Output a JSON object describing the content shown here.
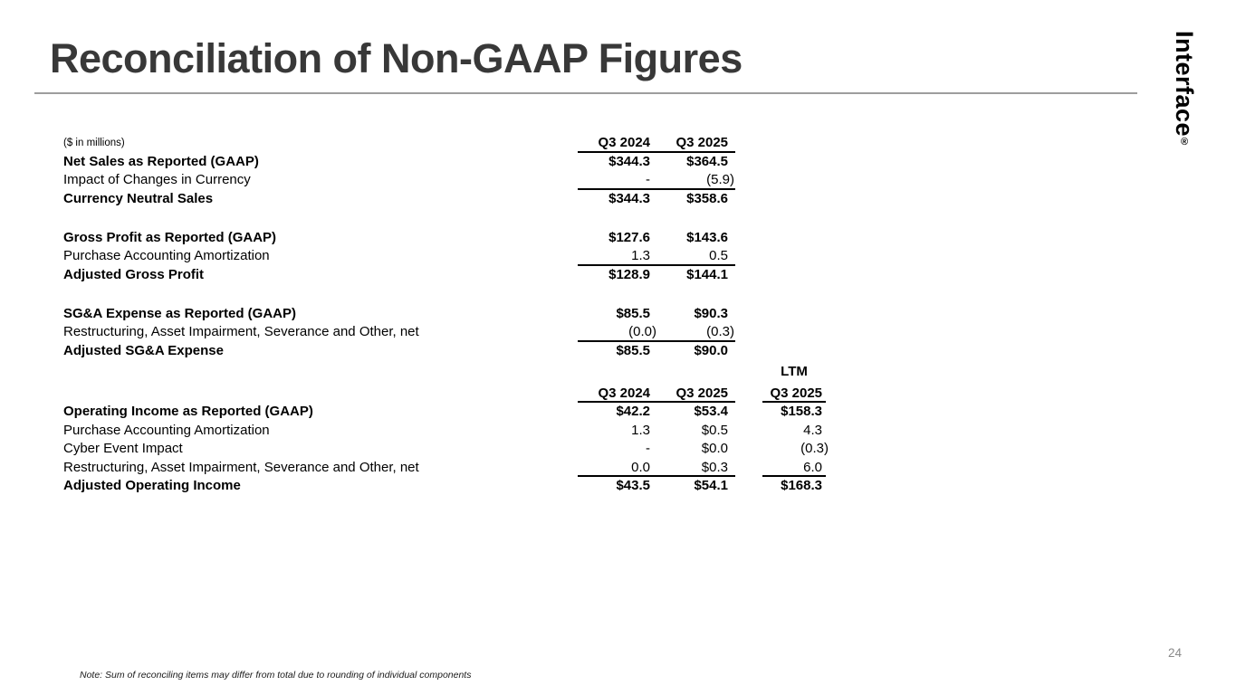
{
  "slide": {
    "title": "Reconciliation of Non-GAAP Figures",
    "logo_text": "Interface",
    "logo_registered": "®",
    "footnote": "Note: Sum of reconciling items may differ from total due to rounding of individual components",
    "page_number": "24"
  },
  "colors": {
    "title_text": "#383838",
    "rule": "#9d9d9d",
    "table_text": "#000000",
    "page_number": "#8a8a8a",
    "background": "#ffffff"
  },
  "table": {
    "units_label": "($ in millions)",
    "column_headers_top": [
      "Q3 2024",
      "Q3 2025"
    ],
    "column_headers_bottom": [
      "Q3 2024",
      "Q3 2025",
      "LTM Q3 2025"
    ],
    "rows": [
      {
        "label": "($ in millions)",
        "small": true,
        "vb": true,
        "c1": "Q3 2024",
        "c2": "Q3 2025",
        "line12": true
      },
      {
        "label": "Net Sales as Reported (GAAP)",
        "lb": true,
        "vb": true,
        "c1": "$344.3",
        "c2": "$364.5"
      },
      {
        "label": "Impact of Changes in Currency",
        "c1": "-",
        "c2": "(5.9)",
        "line12": true
      },
      {
        "label": "Currency Neutral Sales",
        "lb": true,
        "vb": true,
        "c1": "$344.3",
        "c2": "$358.6"
      },
      {
        "sp": true
      },
      {
        "label": "Gross Profit as Reported (GAAP)",
        "lb": true,
        "vb": true,
        "c1": "$127.6",
        "c2": "$143.6"
      },
      {
        "label": "Purchase Accounting Amortization",
        "c1": "1.3",
        "c2": "0.5",
        "line12": true
      },
      {
        "label": "Adjusted Gross Profit",
        "lb": true,
        "vb": true,
        "c1": "$128.9",
        "c2": "$144.1"
      },
      {
        "sp": true
      },
      {
        "label": "SG&A Expense as Reported (GAAP)",
        "lb": true,
        "vb": true,
        "c1": "$85.5",
        "c2": "$90.3"
      },
      {
        "label": "Restructuring, Asset Impairment, Severance and Other, net",
        "c1": "(0.0)",
        "c2": "(0.3)",
        "line12": true
      },
      {
        "label": "Adjusted SG&A Expense",
        "lb": true,
        "vb": true,
        "c1": "$85.5",
        "c2": "$90.0"
      },
      {
        "label": "",
        "vb": true,
        "c3": "LTM",
        "c3c": true,
        "mt": true
      },
      {
        "label": "",
        "vb": true,
        "c1": "Q3 2024",
        "c2": "Q3 2025",
        "c3": "Q3 2025",
        "line12": true,
        "line3": true,
        "mt": true
      },
      {
        "label": "Operating Income as Reported (GAAP)",
        "lb": true,
        "vb": true,
        "c1": "$42.2",
        "c2": "$53.4",
        "c3": "$158.3"
      },
      {
        "label": "Purchase Accounting Amortization",
        "c1": "1.3",
        "c2": "$0.5",
        "c3": "4.3"
      },
      {
        "label": "Cyber Event Impact",
        "c1": "-",
        "c2": "$0.0",
        "c3": "(0.3)"
      },
      {
        "label": "Restructuring, Asset Impairment, Severance and Other, net",
        "c1": "0.0",
        "c2": "$0.3",
        "c3": "6.0",
        "line12": true,
        "line3": true
      },
      {
        "label": "Adjusted Operating Income",
        "lb": true,
        "vb": true,
        "c1": "$43.5",
        "c2": "$54.1",
        "c3": "$168.3"
      }
    ]
  }
}
